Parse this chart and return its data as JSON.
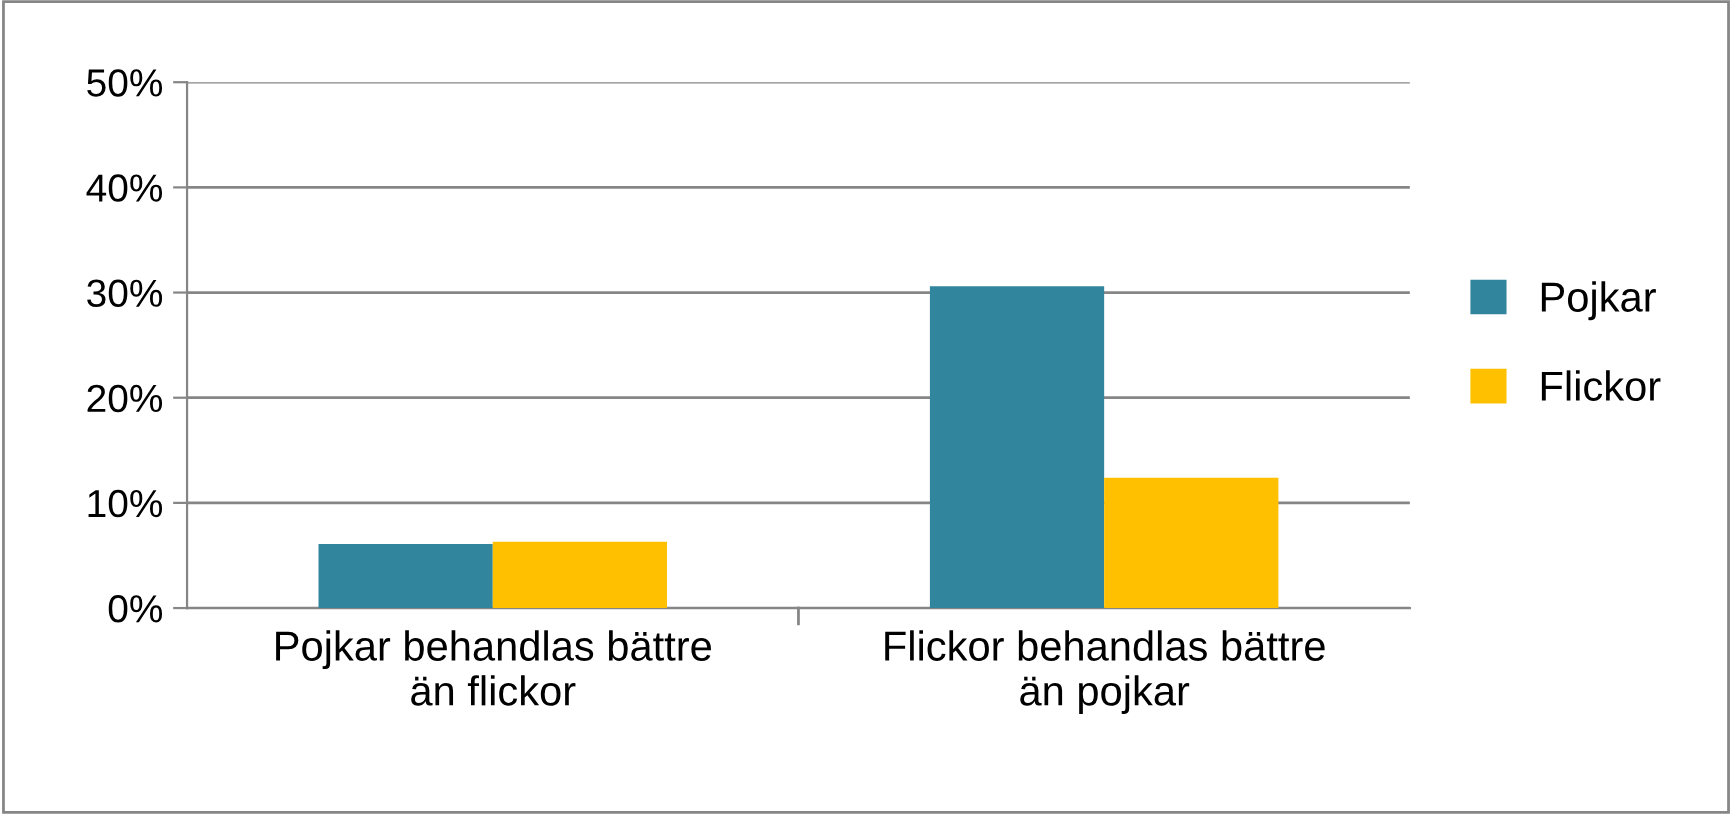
{
  "chart_data": {
    "type": "bar",
    "categories": [
      "Pojkar behandlas bättre\nän flickor",
      "Flickor behandlas bättre\nän pojkar"
    ],
    "series": [
      {
        "name": "Pojkar",
        "color": "#31859c",
        "values": [
          6.1,
          30.6
        ]
      },
      {
        "name": "Flickor",
        "color": "#ffc000",
        "values": [
          6.3,
          12.4
        ]
      }
    ],
    "ylim": [
      0,
      50
    ],
    "yticks": [
      {
        "value": 0,
        "label": "0%"
      },
      {
        "value": 10,
        "label": "10%"
      },
      {
        "value": 20,
        "label": "20%"
      },
      {
        "value": 30,
        "label": "30%"
      },
      {
        "value": 40,
        "label": "40%"
      },
      {
        "value": 50,
        "label": "50%"
      }
    ],
    "grid": "y",
    "legend": "right"
  }
}
